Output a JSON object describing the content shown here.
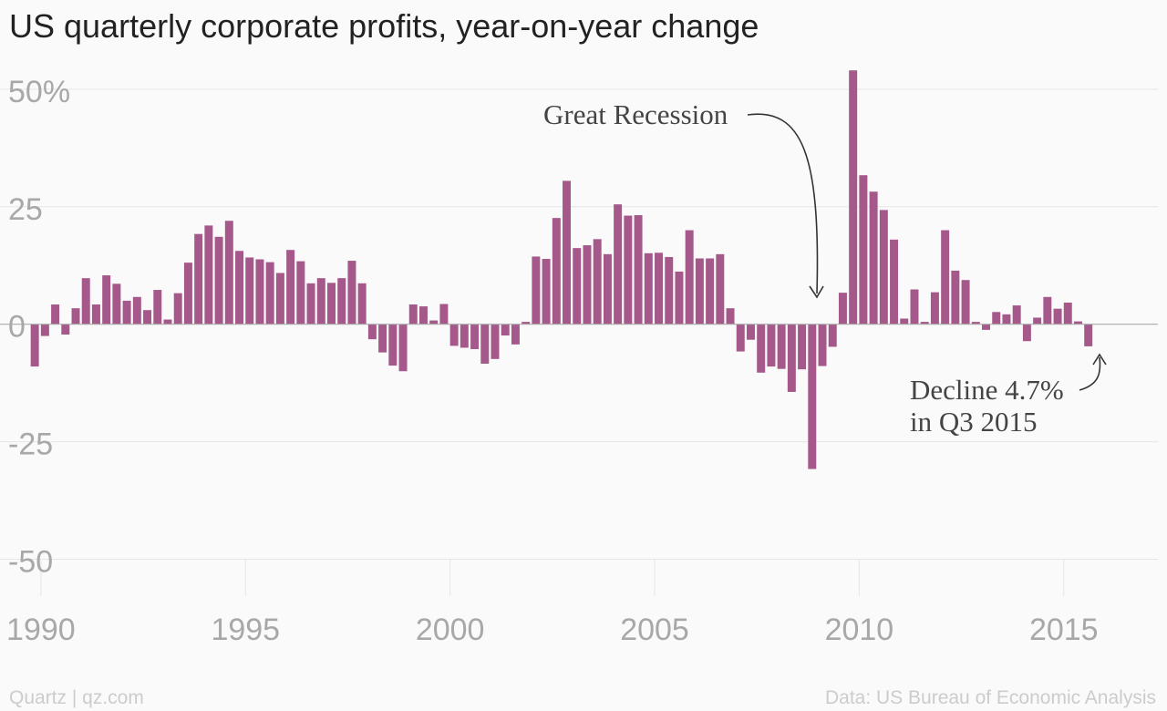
{
  "chart_data": {
    "type": "bar",
    "title": "US quarterly corporate profits, year-on-year change",
    "xlabel": "",
    "ylabel": "",
    "y_unit": "%",
    "ylim": [
      -58,
      54
    ],
    "xlim": [
      1989.0,
      2017.3
    ],
    "y_ticks": [
      50,
      25,
      0,
      -25,
      -50
    ],
    "y_tick_labels": [
      "50%",
      "25",
      "0",
      "-25",
      "-50"
    ],
    "x_ticks": [
      1990,
      1995,
      2000,
      2005,
      2010,
      2015
    ],
    "x_tick_labels": [
      "1990",
      "1995",
      "2000",
      "2005",
      "2010",
      "2015"
    ],
    "grid": true,
    "bar_color": "#a5598b",
    "first_quarter": "1989 Q4",
    "values": [
      -9.0,
      -2.5,
      4.2,
      -2.2,
      3.4,
      9.8,
      4.2,
      10.4,
      8.6,
      5.0,
      5.8,
      3.0,
      7.3,
      1.0,
      6.6,
      13.1,
      19.2,
      21.0,
      18.6,
      22.0,
      15.6,
      14.2,
      13.8,
      13.2,
      10.9,
      15.8,
      13.4,
      8.7,
      9.8,
      8.8,
      9.8,
      13.5,
      8.7,
      -3.2,
      -6.0,
      -8.8,
      -10.0,
      4.2,
      3.8,
      0.8,
      4.3,
      -4.6,
      -5.0,
      -5.3,
      -8.4,
      -7.4,
      -2.4,
      -4.3,
      0.5,
      14.4,
      13.9,
      22.6,
      30.5,
      16.2,
      16.8,
      18.1,
      14.9,
      25.5,
      23.1,
      23.2,
      15.1,
      15.2,
      14.3,
      11.2,
      20.0,
      14.0,
      14.0,
      14.9,
      3.4,
      -5.8,
      -3.3,
      -10.3,
      -9.0,
      -9.5,
      -14.4,
      -9.6,
      -30.8,
      -8.9,
      -4.8,
      6.7,
      54.0,
      31.7,
      28.2,
      24.3,
      18.0,
      1.2,
      7.4,
      0.5,
      6.8,
      20.0,
      11.4,
      9.4,
      0.5,
      -1.2,
      2.6,
      2.1,
      4.0,
      -3.6,
      1.4,
      5.8,
      3.3,
      4.6,
      0.6,
      -4.7
    ],
    "annotations": [
      {
        "lines": [
          "Great Recession"
        ]
      },
      {
        "lines": [
          "Decline 4.7%",
          "in Q3 2015"
        ]
      }
    ]
  },
  "footer": {
    "source_left": "Quartz | qz.com",
    "source_right": "Data: US Bureau of Economic Analysis"
  }
}
